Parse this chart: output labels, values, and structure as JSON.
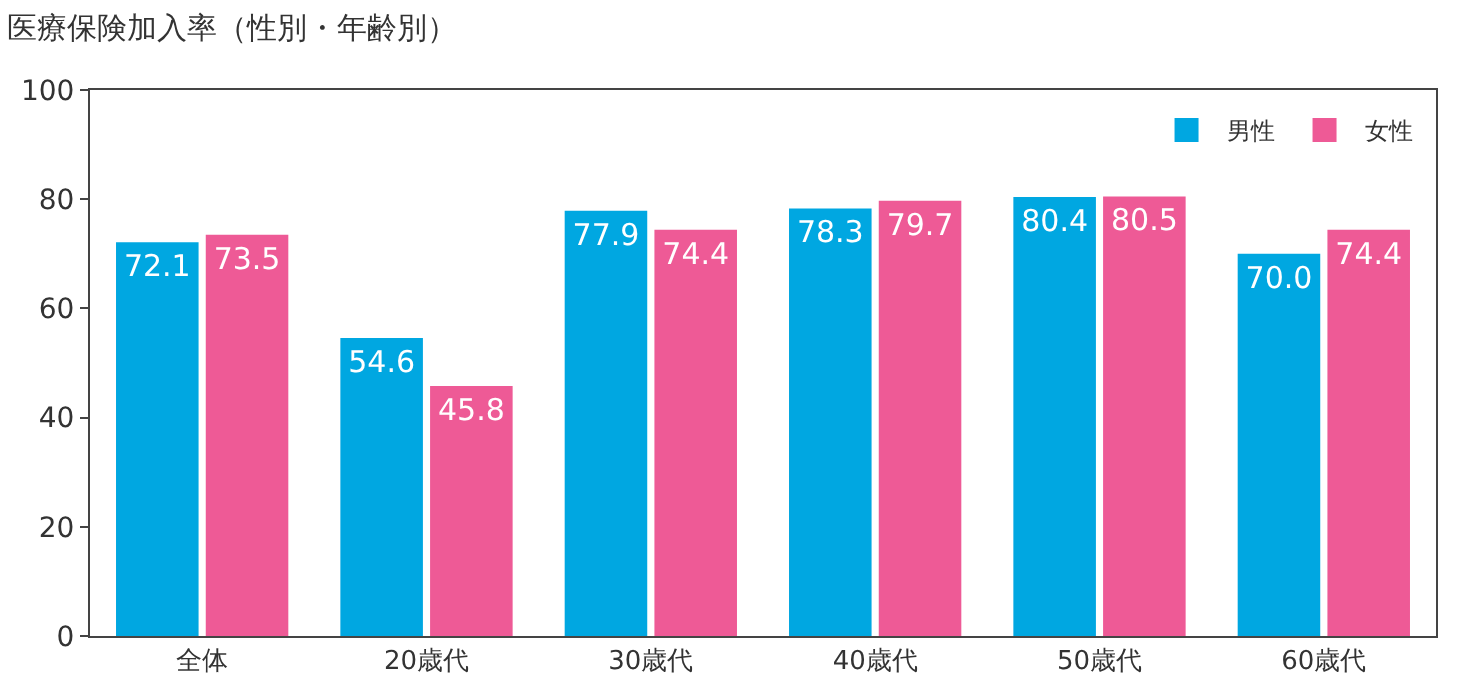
{
  "chart_data": {
    "type": "bar",
    "title": "医療保険加入率（性別・年齢別）",
    "categories": [
      "全体",
      "20歳代",
      "30歳代",
      "40歳代",
      "50歳代",
      "60歳代"
    ],
    "series": [
      {
        "name": "男性",
        "color": "#00a7e1",
        "values": [
          72.1,
          54.6,
          77.9,
          78.3,
          80.4,
          70.0
        ],
        "value_labels": [
          "72.1",
          "54.6",
          "77.9",
          "78.3",
          "80.4",
          "70.0"
        ]
      },
      {
        "name": "女性",
        "color": "#ee5a96",
        "values": [
          73.5,
          45.8,
          74.4,
          79.7,
          80.5,
          74.4
        ],
        "value_labels": [
          "73.5",
          "45.8",
          "74.4",
          "79.7",
          "80.5",
          "74.4"
        ]
      }
    ],
    "ylim": [
      0,
      100
    ],
    "yticks": [
      0,
      20,
      40,
      60,
      80,
      100
    ],
    "grid": false,
    "legend": "top right"
  }
}
